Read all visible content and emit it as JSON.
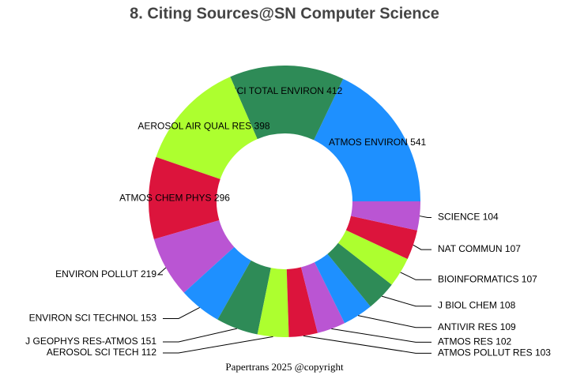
{
  "chart_data": {
    "type": "donut",
    "title": "8. Citing Sources@SN Computer Science",
    "footer": "Papertrans 2025 @copyright",
    "categories": [
      "ATMOS ENVIRON",
      "SCI TOTAL ENVIRON",
      "AEROSOL AIR QUAL RES",
      "ATMOS CHEM PHYS",
      "ENVIRON POLLUT",
      "ENVIRON SCI TECHNOL",
      "J GEOPHYS RES-ATMOS",
      "AEROSOL SCI TECH",
      "ATMOS POLLUT RES",
      "ATMOS RES",
      "ANTIVIR RES",
      "J BIOL CHEM",
      "BIOINFORMATICS",
      "NAT COMMUN",
      "SCIENCE"
    ],
    "values": [
      541,
      412,
      398,
      296,
      219,
      153,
      151,
      112,
      103,
      102,
      109,
      108,
      107,
      107,
      104
    ],
    "colors": [
      "#1e90ff",
      "#2e8b57",
      "#adff2f",
      "#dc143c",
      "#ba55d3"
    ]
  }
}
